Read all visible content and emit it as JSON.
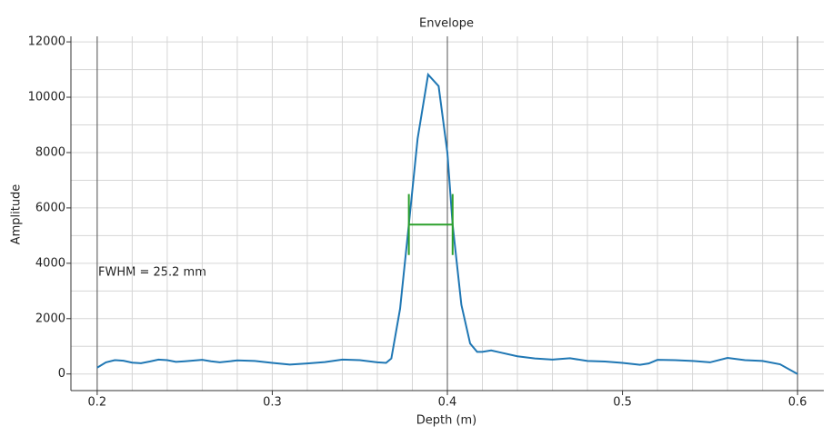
{
  "chart_data": {
    "type": "line",
    "title": "Envelope",
    "x_label": "Depth (m)",
    "y_label": "Amplitude",
    "xlim": [
      0.185,
      0.615
    ],
    "ylim": [
      -600,
      12200
    ],
    "xticks": [
      0.2,
      0.3,
      0.4,
      0.5,
      0.6
    ],
    "yticks": [
      0,
      2000,
      4000,
      6000,
      8000,
      10000,
      12000
    ],
    "x_grid_step": 0.02,
    "y_grid_step": 1000,
    "x_major_grid": [
      0.2,
      0.4,
      0.6
    ],
    "series": [
      {
        "name": "Envelope",
        "color": "#1f77b4",
        "x": [
          0.2,
          0.205,
          0.21,
          0.215,
          0.22,
          0.225,
          0.23,
          0.235,
          0.24,
          0.245,
          0.25,
          0.26,
          0.265,
          0.27,
          0.28,
          0.29,
          0.3,
          0.31,
          0.32,
          0.33,
          0.34,
          0.35,
          0.36,
          0.365,
          0.368,
          0.373,
          0.378,
          0.383,
          0.389,
          0.395,
          0.4,
          0.403,
          0.408,
          0.413,
          0.417,
          0.42,
          0.425,
          0.43,
          0.44,
          0.45,
          0.46,
          0.47,
          0.48,
          0.49,
          0.5,
          0.51,
          0.515,
          0.52,
          0.53,
          0.54,
          0.55,
          0.56,
          0.57,
          0.58,
          0.59,
          0.6
        ],
        "values": [
          230,
          420,
          500,
          480,
          410,
          390,
          450,
          520,
          500,
          440,
          460,
          510,
          460,
          420,
          490,
          470,
          400,
          340,
          380,
          430,
          520,
          500,
          420,
          400,
          560,
          2360,
          5400,
          8500,
          10820,
          10400,
          8000,
          5400,
          2500,
          1100,
          800,
          800,
          850,
          780,
          640,
          560,
          520,
          570,
          470,
          450,
          400,
          330,
          380,
          510,
          500,
          470,
          420,
          580,
          500,
          470,
          350,
          0
        ]
      }
    ],
    "fwhm_marker": {
      "color": "#2ca02c",
      "x": [
        0.378,
        0.403
      ],
      "y": 5400,
      "bar": [
        4300,
        6500
      ]
    },
    "annotation": "FWHM = 25.2 mm"
  }
}
